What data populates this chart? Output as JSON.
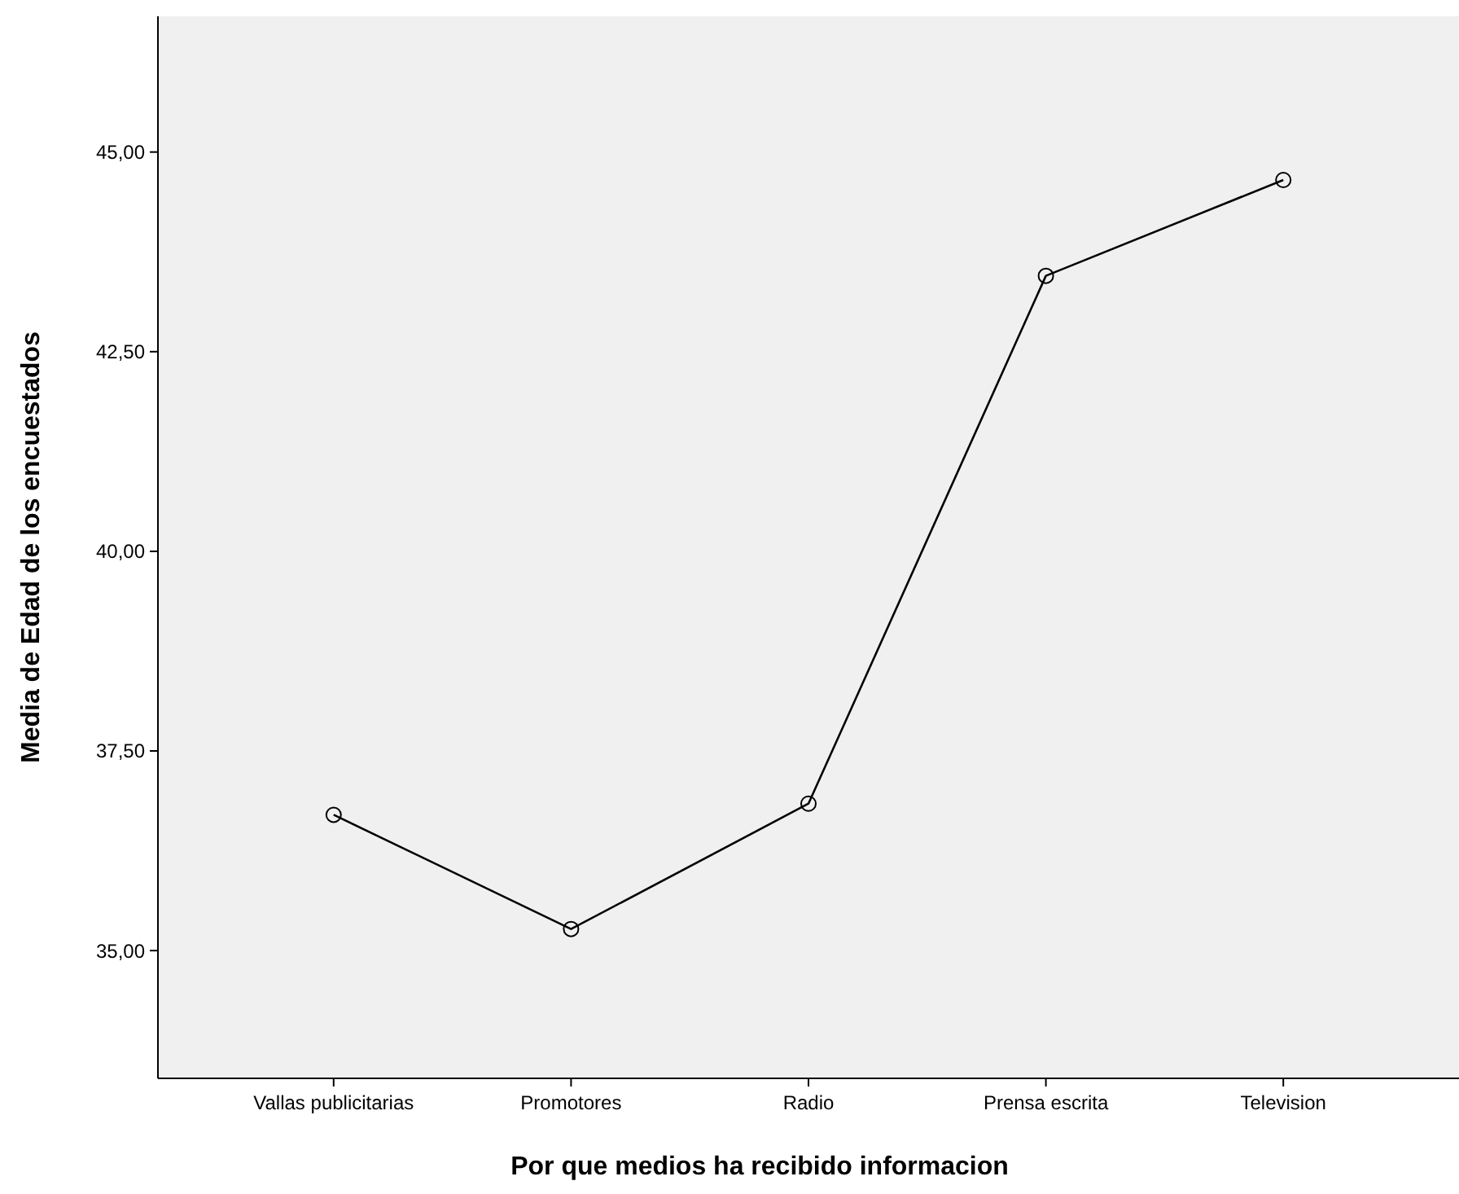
{
  "chart_data": {
    "type": "line",
    "xlabel": "Por que medios ha recibido informacion",
    "ylabel": "Media de Edad de los encuestados",
    "categories": [
      "Vallas publicitarias",
      "Promotores",
      "Radio",
      "Prensa escrita",
      "Television"
    ],
    "values": [
      36.7,
      35.27,
      36.84,
      43.45,
      44.65
    ],
    "color": "#000000",
    "marker": "circle",
    "line_style": "solid",
    "grid": false,
    "ylim": [
      33.4,
      46.7
    ],
    "yticks": [
      {
        "value": 35,
        "label": "35,00"
      },
      {
        "value": 37.5,
        "label": "37,50"
      },
      {
        "value": 40,
        "label": "40,00"
      },
      {
        "value": 42.5,
        "label": "42,50"
      },
      {
        "value": 45,
        "label": "45,00"
      }
    ]
  }
}
